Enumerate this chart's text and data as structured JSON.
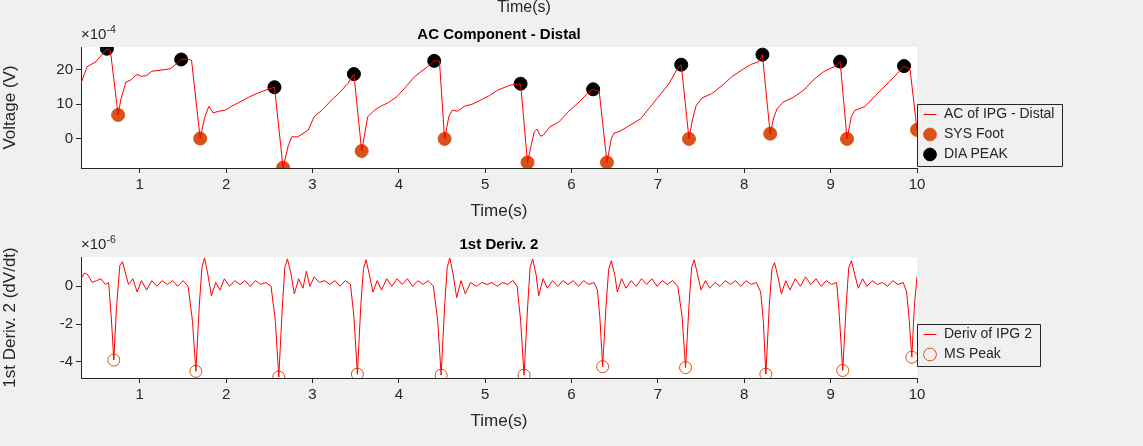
{
  "chart_data": [
    {
      "type": "line",
      "title": "AC Component - Distal",
      "xlabel": "Time(s)",
      "ylabel": "Voltage (V)",
      "annotations": [
        "×10$^{-4}$",
        "Time(s)"
      ],
      "xlim": [
        0.32,
        10
      ],
      "xticks": [
        1,
        2,
        3,
        4,
        5,
        6,
        7,
        8,
        9,
        10
      ],
      "ylim": [
        -8.4,
        26.5
      ],
      "yticks": [
        0,
        10,
        20
      ],
      "grid": false,
      "legend": "right",
      "marker": "none",
      "line_style": "solid",
      "series": [
        {
          "name": "AC of IPG - Distal",
          "color": "#ff0000",
          "x": [
            0.32,
            0.39,
            0.49,
            0.55,
            0.62,
            0.66,
            0.75,
            0.78,
            0.84,
            0.89,
            0.97,
            1.02,
            1.08,
            1.14,
            1.2,
            1.27,
            1.35,
            1.42,
            1.48,
            1.55,
            1.6,
            1.7,
            1.75,
            1.8,
            1.85,
            1.92,
            1.99,
            2.06,
            2.15,
            2.26,
            2.35,
            2.45,
            2.56,
            2.66,
            2.72,
            2.76,
            2.83,
            2.95,
            3.02,
            3.12,
            3.22,
            3.32,
            3.41,
            3.48,
            3.57,
            3.64,
            3.72,
            3.79,
            3.88,
            3.98,
            4.08,
            4.18,
            4.33,
            4.41,
            4.47,
            4.53,
            4.58,
            4.62,
            4.68,
            4.76,
            4.85,
            4.95,
            5.05,
            5.14,
            5.29,
            5.41,
            5.49,
            5.54,
            5.57,
            5.6,
            5.64,
            5.67,
            5.75,
            5.85,
            5.97,
            6.09,
            6.2,
            6.25,
            6.32,
            6.41,
            6.46,
            6.49,
            6.56,
            6.68,
            6.8,
            6.92,
            7.03,
            7.13,
            7.22,
            7.27,
            7.36,
            7.4,
            7.44,
            7.51,
            7.62,
            7.74,
            7.86,
            7.98,
            8.08,
            8.17,
            8.21,
            8.3,
            8.34,
            8.38,
            8.45,
            8.57,
            8.69,
            8.8,
            8.92,
            9.07,
            9.11,
            9.19,
            9.24,
            9.28,
            9.4,
            9.52,
            9.63,
            9.74,
            9.85,
            9.92,
            10.0
          ],
          "values": [
            16.0,
            20.8,
            22.2,
            24.0,
            26.0,
            25.5,
            6.9,
            11.2,
            16.4,
            16.9,
            18.6,
            18.0,
            18.3,
            19.5,
            19.7,
            19.9,
            20.2,
            21.5,
            22.9,
            23.0,
            22.7,
            0.1,
            6.0,
            9.4,
            7.5,
            8.0,
            8.3,
            9.4,
            10.5,
            12.0,
            13.0,
            14.0,
            14.9,
            -8.3,
            -2.0,
            0.6,
            0.6,
            2.5,
            6.4,
            8.5,
            11.2,
            13.5,
            16.0,
            18.7,
            -3.5,
            6.4,
            8.3,
            9.4,
            10.5,
            12.2,
            15.0,
            17.9,
            20.8,
            22.5,
            22.5,
            0,
            6.5,
            8.3,
            8.0,
            9.4,
            10.0,
            11.2,
            12.5,
            14.0,
            15.5,
            15.9,
            -6.8,
            -1.0,
            2.2,
            2.8,
            0.8,
            1.0,
            3.5,
            4.8,
            8.0,
            10.7,
            13.5,
            14.3,
            13.7,
            -6.8,
            0,
            1.6,
            2.2,
            4.0,
            5.8,
            9.5,
            12.9,
            16.0,
            20.0,
            21.4,
            0,
            5.5,
            9.4,
            11.8,
            13.0,
            15.3,
            18.0,
            20.0,
            21.5,
            22.3,
            24.3,
            1.5,
            6.0,
            8.7,
            10.6,
            12.0,
            14.1,
            17.0,
            19.4,
            21.2,
            22.3,
            0,
            6.5,
            8.2,
            9.4,
            12.5,
            15.3,
            18.0,
            21.0,
            20.0,
            2.6
          ]
        },
        {
          "name": "SYS Foot",
          "type": "scatter",
          "marker": "circle",
          "color": "#d95319",
          "x": [
            0.75,
            1.7,
            2.66,
            3.57,
            4.53,
            5.49,
            6.41,
            7.36,
            8.3,
            9.19,
            10.0
          ],
          "values": [
            6.9,
            0.1,
            -8.3,
            -3.5,
            0,
            -6.8,
            -6.8,
            0,
            1.5,
            0,
            2.6
          ]
        },
        {
          "name": "DIA PEAK",
          "type": "scatter",
          "marker": "circle",
          "color": "#000000",
          "x": [
            0.62,
            1.48,
            2.56,
            3.48,
            4.41,
            5.41,
            6.25,
            7.27,
            8.21,
            9.11,
            9.85
          ],
          "values": [
            26.0,
            22.9,
            14.9,
            18.7,
            22.5,
            15.9,
            14.3,
            21.4,
            24.3,
            22.3,
            21.0
          ]
        }
      ]
    },
    {
      "type": "line",
      "title": "1st Deriv. 2",
      "xlabel": "Time(s)",
      "ylabel": "1st Deriv. 2 (dV/dt)",
      "annotations": [
        "×10$^{-6}$"
      ],
      "xlim": [
        0.32,
        10
      ],
      "xticks": [
        1,
        2,
        3,
        4,
        5,
        6,
        7,
        8,
        9,
        10
      ],
      "ylim": [
        -4.85,
        1.55
      ],
      "yticks": [
        -4,
        -2,
        0
      ],
      "grid": false,
      "legend": "right",
      "marker": "none",
      "line_style": "solid",
      "series": [
        {
          "name": "Deriv of IPG 2",
          "color": "#ff0000",
          "x": [
            0.32,
            0.36,
            0.4,
            0.45,
            0.5,
            0.55,
            0.6,
            0.64,
            0.67,
            0.7,
            0.73,
            0.77,
            0.8,
            0.84,
            0.87,
            0.92,
            0.97,
            1.02,
            1.08,
            1.14,
            1.2,
            1.26,
            1.32,
            1.38,
            1.44,
            1.5,
            1.56,
            1.61,
            1.65,
            1.69,
            1.72,
            1.75,
            1.79,
            1.83,
            1.88,
            1.93,
            1.98,
            2.04,
            2.1,
            2.16,
            2.22,
            2.28,
            2.34,
            2.4,
            2.46,
            2.52,
            2.57,
            2.61,
            2.65,
            2.68,
            2.71,
            2.75,
            2.79,
            2.84,
            2.89,
            2.93,
            2.97,
            3.02,
            3.08,
            3.14,
            3.2,
            3.26,
            3.32,
            3.38,
            3.44,
            3.48,
            3.52,
            3.56,
            3.59,
            3.62,
            3.66,
            3.7,
            3.75,
            3.8,
            3.86,
            3.92,
            3.98,
            4.04,
            4.1,
            4.16,
            4.22,
            4.28,
            4.34,
            4.4,
            4.45,
            4.49,
            4.53,
            4.56,
            4.59,
            4.63,
            4.67,
            4.72,
            4.77,
            4.83,
            4.9,
            4.96,
            5.02,
            5.08,
            5.14,
            5.2,
            5.26,
            5.32,
            5.37,
            5.41,
            5.45,
            5.49,
            5.52,
            5.55,
            5.59,
            5.62,
            5.67,
            5.72,
            5.78,
            5.84,
            5.9,
            5.96,
            6.02,
            6.08,
            6.14,
            6.2,
            6.26,
            6.3,
            6.33,
            6.36,
            6.4,
            6.43,
            6.46,
            6.5,
            6.53,
            6.58,
            6.63,
            6.69,
            6.75,
            6.81,
            6.87,
            6.93,
            6.99,
            7.05,
            7.11,
            7.17,
            7.23,
            7.28,
            7.32,
            7.36,
            7.39,
            7.42,
            7.46,
            7.5,
            7.55,
            7.6,
            7.66,
            7.72,
            7.78,
            7.84,
            7.9,
            7.96,
            8.02,
            8.08,
            8.14,
            8.19,
            8.22,
            8.25,
            8.29,
            8.32,
            8.35,
            8.39,
            8.43,
            8.48,
            8.53,
            8.59,
            8.65,
            8.71,
            8.77,
            8.83,
            8.89,
            8.95,
            9.01,
            9.07,
            9.1,
            9.14,
            9.18,
            9.21,
            9.24,
            9.28,
            9.32,
            9.37,
            9.42,
            9.48,
            9.54,
            9.6,
            9.66,
            9.72,
            9.78,
            9.84,
            9.88,
            9.91,
            9.94,
            9.97,
            10.0
          ],
          "values": [
            0.4,
            0.7,
            0.6,
            0.2,
            0.3,
            0.4,
            0.1,
            0.2,
            -1.6,
            -3.9,
            -1.2,
            1.1,
            1.3,
            0.6,
            0.1,
            0.4,
            -0.3,
            0.3,
            -0.2,
            0.3,
            0.0,
            0.3,
            0.1,
            0.3,
            0.0,
            0.3,
            0.0,
            -1.8,
            -4.5,
            -1.0,
            1.0,
            1.5,
            0.6,
            -0.5,
            0.2,
            -0.2,
            0.4,
            0.0,
            0.3,
            0.1,
            0.3,
            0.0,
            0.3,
            0.1,
            0.2,
            0.0,
            -1.8,
            -4.8,
            -1.2,
            1.0,
            1.45,
            0.7,
            -0.4,
            0.4,
            -0.1,
            0.8,
            0.0,
            0.5,
            0.2,
            0.3,
            0.1,
            0.3,
            0.0,
            0.3,
            0.1,
            -1.6,
            -4.65,
            -1.0,
            0.9,
            1.4,
            0.6,
            -0.3,
            0.3,
            -0.2,
            0.4,
            0.0,
            0.4,
            0.1,
            0.4,
            0.0,
            0.3,
            0.1,
            0.3,
            0.0,
            -1.8,
            -4.7,
            -1.1,
            1.0,
            1.5,
            0.6,
            -0.6,
            0.3,
            -0.4,
            0.2,
            0.0,
            0.2,
            0.1,
            0.2,
            0.0,
            0.2,
            0.1,
            0.3,
            0.0,
            -1.8,
            -4.7,
            -1.2,
            1.0,
            1.45,
            0.6,
            -0.5,
            0.4,
            -0.1,
            0.3,
            0.0,
            0.3,
            0.1,
            0.3,
            0.0,
            0.3,
            0.1,
            0.2,
            -0.2,
            -1.8,
            -4.25,
            -1.0,
            0.9,
            1.35,
            0.6,
            -0.3,
            0.4,
            -0.1,
            0.3,
            0.0,
            0.4,
            0.1,
            0.4,
            0.0,
            0.3,
            0.1,
            0.3,
            0.0,
            -1.6,
            -4.3,
            -1.0,
            1.0,
            1.4,
            0.6,
            -0.2,
            0.3,
            -0.1,
            0.2,
            0.0,
            0.3,
            0.1,
            0.3,
            0.0,
            0.3,
            0.1,
            0.2,
            -0.3,
            -1.8,
            -4.65,
            -1.0,
            0.9,
            1.25,
            0.5,
            -0.4,
            0.3,
            -0.2,
            0.4,
            0.0,
            0.5,
            0.1,
            0.4,
            0.0,
            0.3,
            0.1,
            0.2,
            -1.5,
            -4.45,
            -1.0,
            1.0,
            1.35,
            0.6,
            -0.1,
            0.4,
            0.0,
            0.3,
            0.1,
            0.2,
            0.0,
            0.3,
            0.1,
            0.2,
            -0.3,
            -1.8,
            -3.75,
            -1.0,
            0.5
          ]
        },
        {
          "name": "MS Peak",
          "type": "scatter",
          "marker": "circle",
          "color": "#d95319",
          "x": [
            0.7,
            1.65,
            2.61,
            3.52,
            4.49,
            5.45,
            6.36,
            7.32,
            8.25,
            9.14,
            9.94
          ],
          "values": [
            -3.9,
            -4.5,
            -4.8,
            -4.65,
            -4.7,
            -4.7,
            -4.25,
            -4.3,
            -4.65,
            -4.45,
            -3.75
          ]
        }
      ]
    }
  ]
}
